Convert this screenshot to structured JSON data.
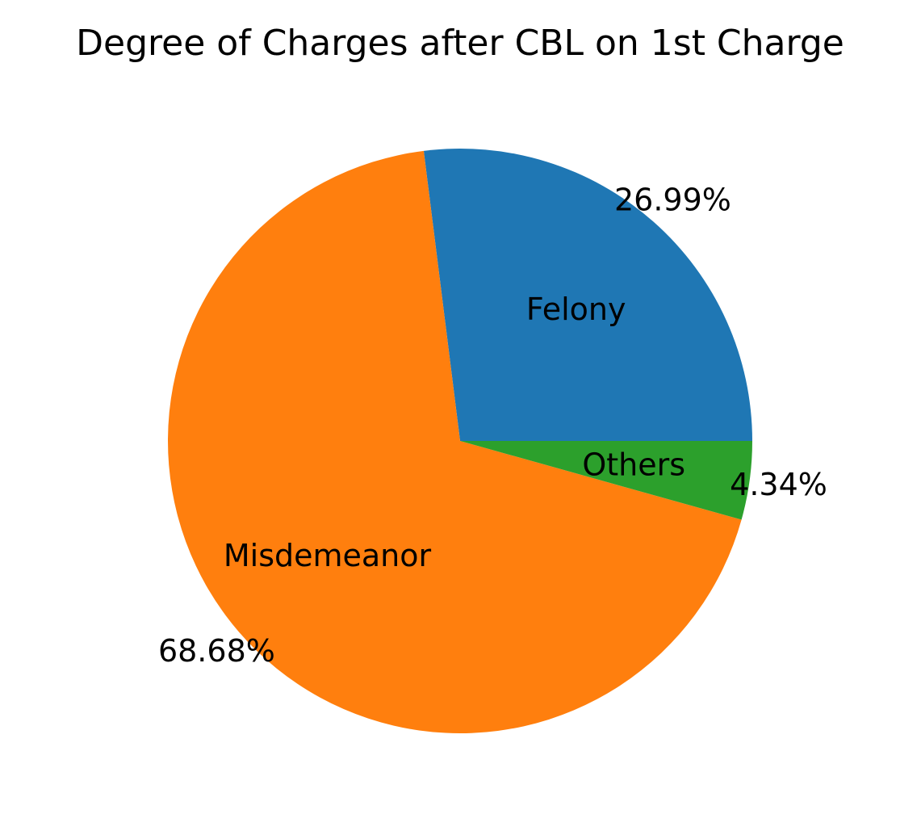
{
  "chart_data": {
    "type": "pie",
    "title": "Degree of Charges after CBL on 1st Charge",
    "start_angle_deg": 0,
    "direction": "counterclockwise",
    "slices": [
      {
        "label": "Felony",
        "value": 26.99,
        "pct_label": "26.99%",
        "color": "#1f77b4"
      },
      {
        "label": "Misdemeanor",
        "value": 68.68,
        "pct_label": "68.68%",
        "color": "#ff7f0e"
      },
      {
        "label": "Others",
        "value": 4.34,
        "pct_label": "4.34%",
        "color": "#2ca02c"
      }
    ]
  }
}
